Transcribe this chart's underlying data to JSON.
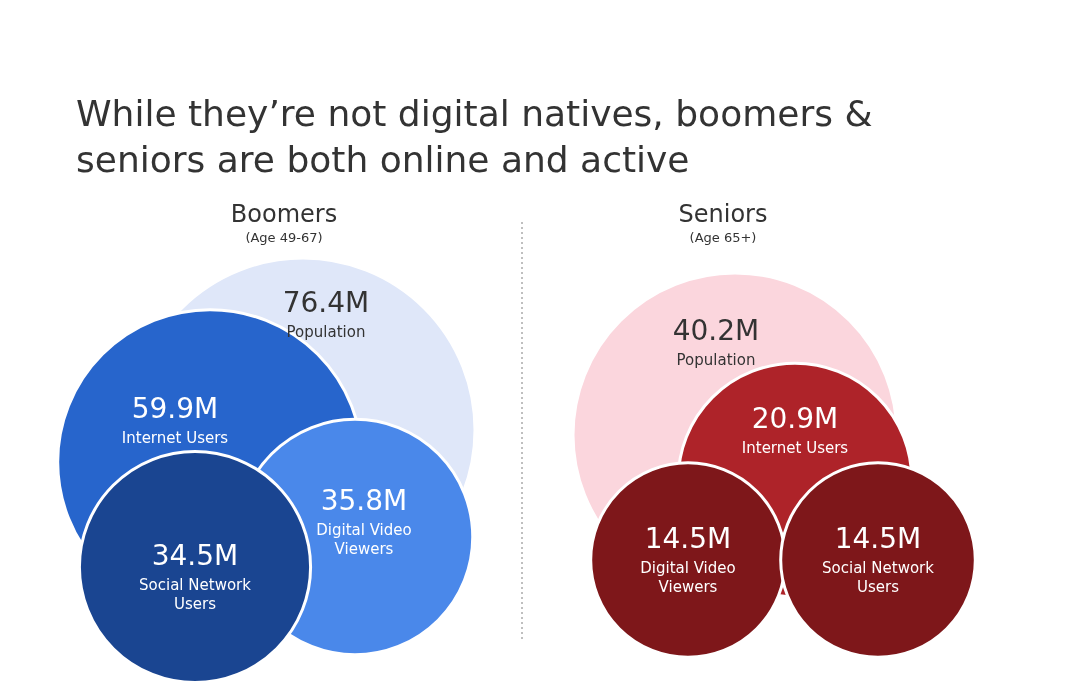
{
  "chart_data": [
    {
      "type": "other",
      "title": "While they’re not digital natives, boomers & seniors are both online and active",
      "subtitle": "Boomers",
      "annotations": [
        "(Age 49-67)"
      ],
      "categories": [
        "Population",
        "Internet Users",
        "Digital Video Viewers",
        "Social Network Users"
      ],
      "values": [
        76.4,
        59.9,
        35.8,
        34.5
      ],
      "value_labels": [
        "76.4M",
        "59.9M",
        "35.8M",
        "34.5M"
      ],
      "colors": [
        "#dfe7f9",
        "#2765cc",
        "#4a88ea",
        "#1a4591"
      ]
    },
    {
      "type": "other",
      "subtitle": "Seniors",
      "annotations": [
        "(Age 65+)"
      ],
      "categories": [
        "Population",
        "Internet Users",
        "Digital Video Viewers",
        "Social Network Users"
      ],
      "values": [
        40.2,
        20.9,
        14.5,
        14.5
      ],
      "value_labels": [
        "40.2M",
        "20.9M",
        "14.5M",
        "14.5M"
      ],
      "colors": [
        "#fbd6dd",
        "#ae2329",
        "#7e171a",
        "#7e171a"
      ]
    }
  ]
}
